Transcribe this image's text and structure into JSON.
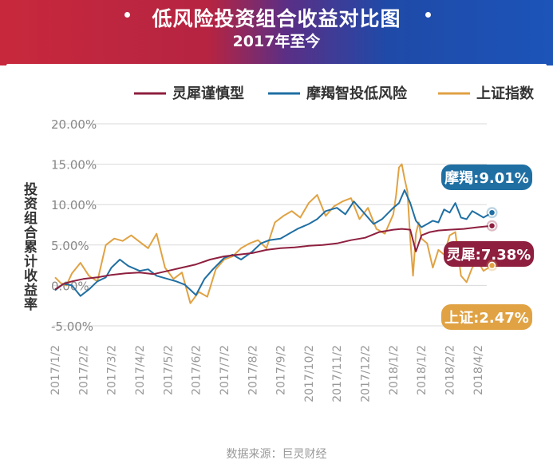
{
  "header": {
    "title": "低风险投资组合收益对比图",
    "subtitle": "2017年至今"
  },
  "source": "数据来源：巨灵财经",
  "colors": {
    "lingxi": "#8e1f3f",
    "moje": "#1f6fa3",
    "shanghai": "#e0a243",
    "banner_left": "#c8283c",
    "banner_right": "#1c54b8"
  },
  "chart_data": {
    "type": "line",
    "title": "低风险投资组合收益对比图",
    "subtitle": "2017年至今",
    "ylabel": "投资组合累计收益率",
    "xlabel": "",
    "ylim": [
      -5,
      20
    ],
    "yticks": [
      "20.00%",
      "15.00%",
      "10.00%",
      "5.00%",
      "0.00%",
      "-5.00%"
    ],
    "ytick_values": [
      20,
      15,
      10,
      5,
      0,
      -5
    ],
    "x_labels": [
      "2017/1/2",
      "2017/2/2",
      "2017/3/2",
      "2017/4/2",
      "2017/5/2",
      "2017/6/2",
      "2017/7/2",
      "2017/8/2",
      "2017/9/2",
      "2017/10/2",
      "2017/11/2",
      "2017/12/2",
      "2018/1/2",
      "2018/1/2",
      "2018/2/2",
      "2018/4/2"
    ],
    "grid": true,
    "legend_position": "top",
    "series": [
      {
        "name": "灵犀谨慎型",
        "color": "#8e1f3f",
        "end_label": "灵犀:7.38%",
        "x": [
          0,
          0.3,
          0.6,
          1,
          1.5,
          2,
          2.5,
          3,
          3.5,
          4,
          4.5,
          5,
          5.5,
          6,
          6.5,
          7,
          7.5,
          8,
          8.5,
          9,
          9.5,
          10,
          10.5,
          11,
          11.5,
          12,
          12.3,
          12.6,
          12.8,
          13,
          13.3,
          13.6,
          14,
          14.5,
          15,
          15.5
        ],
        "values": [
          -0.5,
          0.2,
          0.5,
          0.8,
          1.0,
          1.3,
          1.5,
          1.6,
          1.4,
          1.8,
          2.2,
          2.6,
          3.2,
          3.6,
          3.8,
          4.0,
          4.4,
          4.6,
          4.7,
          4.9,
          5.0,
          5.2,
          5.6,
          5.9,
          6.6,
          6.9,
          7.0,
          6.9,
          4.2,
          6.2,
          6.6,
          6.8,
          6.9,
          7.0,
          7.2,
          7.38
        ]
      },
      {
        "name": "摩羯智投低风险",
        "color": "#1f6fa3",
        "end_label": "摩羯:9.01%",
        "x": [
          0,
          0.3,
          0.6,
          0.9,
          1.2,
          1.5,
          1.8,
          2,
          2.3,
          2.6,
          3,
          3.3,
          3.6,
          4,
          4.3,
          4.6,
          5,
          5.3,
          5.6,
          6,
          6.3,
          6.6,
          7,
          7.3,
          7.6,
          8,
          8.3,
          8.6,
          9,
          9.3,
          9.6,
          10,
          10.3,
          10.6,
          11,
          11.3,
          11.6,
          12,
          12.2,
          12.4,
          12.6,
          12.8,
          13,
          13.2,
          13.4,
          13.6,
          13.8,
          14,
          14.2,
          14.4,
          14.6,
          14.8,
          15,
          15.2,
          15.5
        ],
        "values": [
          -0.6,
          0.2,
          0.0,
          -1.3,
          -0.5,
          0.5,
          1.0,
          2.2,
          3.2,
          2.4,
          1.8,
          2.0,
          1.2,
          0.8,
          0.5,
          0.1,
          -1.2,
          0.8,
          2.0,
          3.4,
          3.8,
          3.2,
          4.2,
          5.2,
          5.6,
          5.8,
          6.4,
          7.0,
          7.6,
          8.2,
          9.2,
          9.6,
          8.8,
          10.4,
          8.8,
          7.6,
          8.2,
          9.6,
          10.2,
          11.8,
          10.2,
          8.0,
          7.2,
          7.6,
          8.0,
          7.8,
          9.4,
          9.0,
          10.2,
          8.4,
          8.2,
          9.2,
          8.8,
          8.4,
          9.01
        ]
      },
      {
        "name": "上证指数",
        "color": "#e0a243",
        "end_label": "上证:2.47%",
        "x": [
          0,
          0.2,
          0.4,
          0.6,
          0.9,
          1.2,
          1.5,
          1.8,
          2.1,
          2.4,
          2.7,
          3,
          3.3,
          3.6,
          3.9,
          4.2,
          4.5,
          4.8,
          5.1,
          5.4,
          5.7,
          6,
          6.3,
          6.6,
          6.9,
          7.2,
          7.5,
          7.8,
          8.1,
          8.4,
          8.7,
          9,
          9.3,
          9.6,
          9.9,
          10.2,
          10.5,
          10.8,
          11.1,
          11.4,
          11.7,
          12,
          12.1,
          12.2,
          12.3,
          12.4,
          12.5,
          12.6,
          12.7,
          12.8,
          12.9,
          13,
          13.2,
          13.4,
          13.6,
          13.8,
          14,
          14.2,
          14.4,
          14.6,
          14.8,
          15,
          15.2,
          15.5
        ],
        "values": [
          1.0,
          0.3,
          0.0,
          1.5,
          2.8,
          1.2,
          0.5,
          5.0,
          5.8,
          5.5,
          6.2,
          5.4,
          4.6,
          6.4,
          2.2,
          0.8,
          1.6,
          -2.2,
          -0.8,
          -1.4,
          2.0,
          3.2,
          3.6,
          4.6,
          5.2,
          5.6,
          4.6,
          7.8,
          8.6,
          9.2,
          8.4,
          10.2,
          11.2,
          8.6,
          9.8,
          10.4,
          10.8,
          8.2,
          9.6,
          7.0,
          6.4,
          8.8,
          11.2,
          14.6,
          15.0,
          13.2,
          11.6,
          5.8,
          1.2,
          6.4,
          7.8,
          5.8,
          5.2,
          2.2,
          4.4,
          3.8,
          6.2,
          6.6,
          1.2,
          0.4,
          2.2,
          3.0,
          1.8,
          2.47
        ]
      }
    ]
  }
}
